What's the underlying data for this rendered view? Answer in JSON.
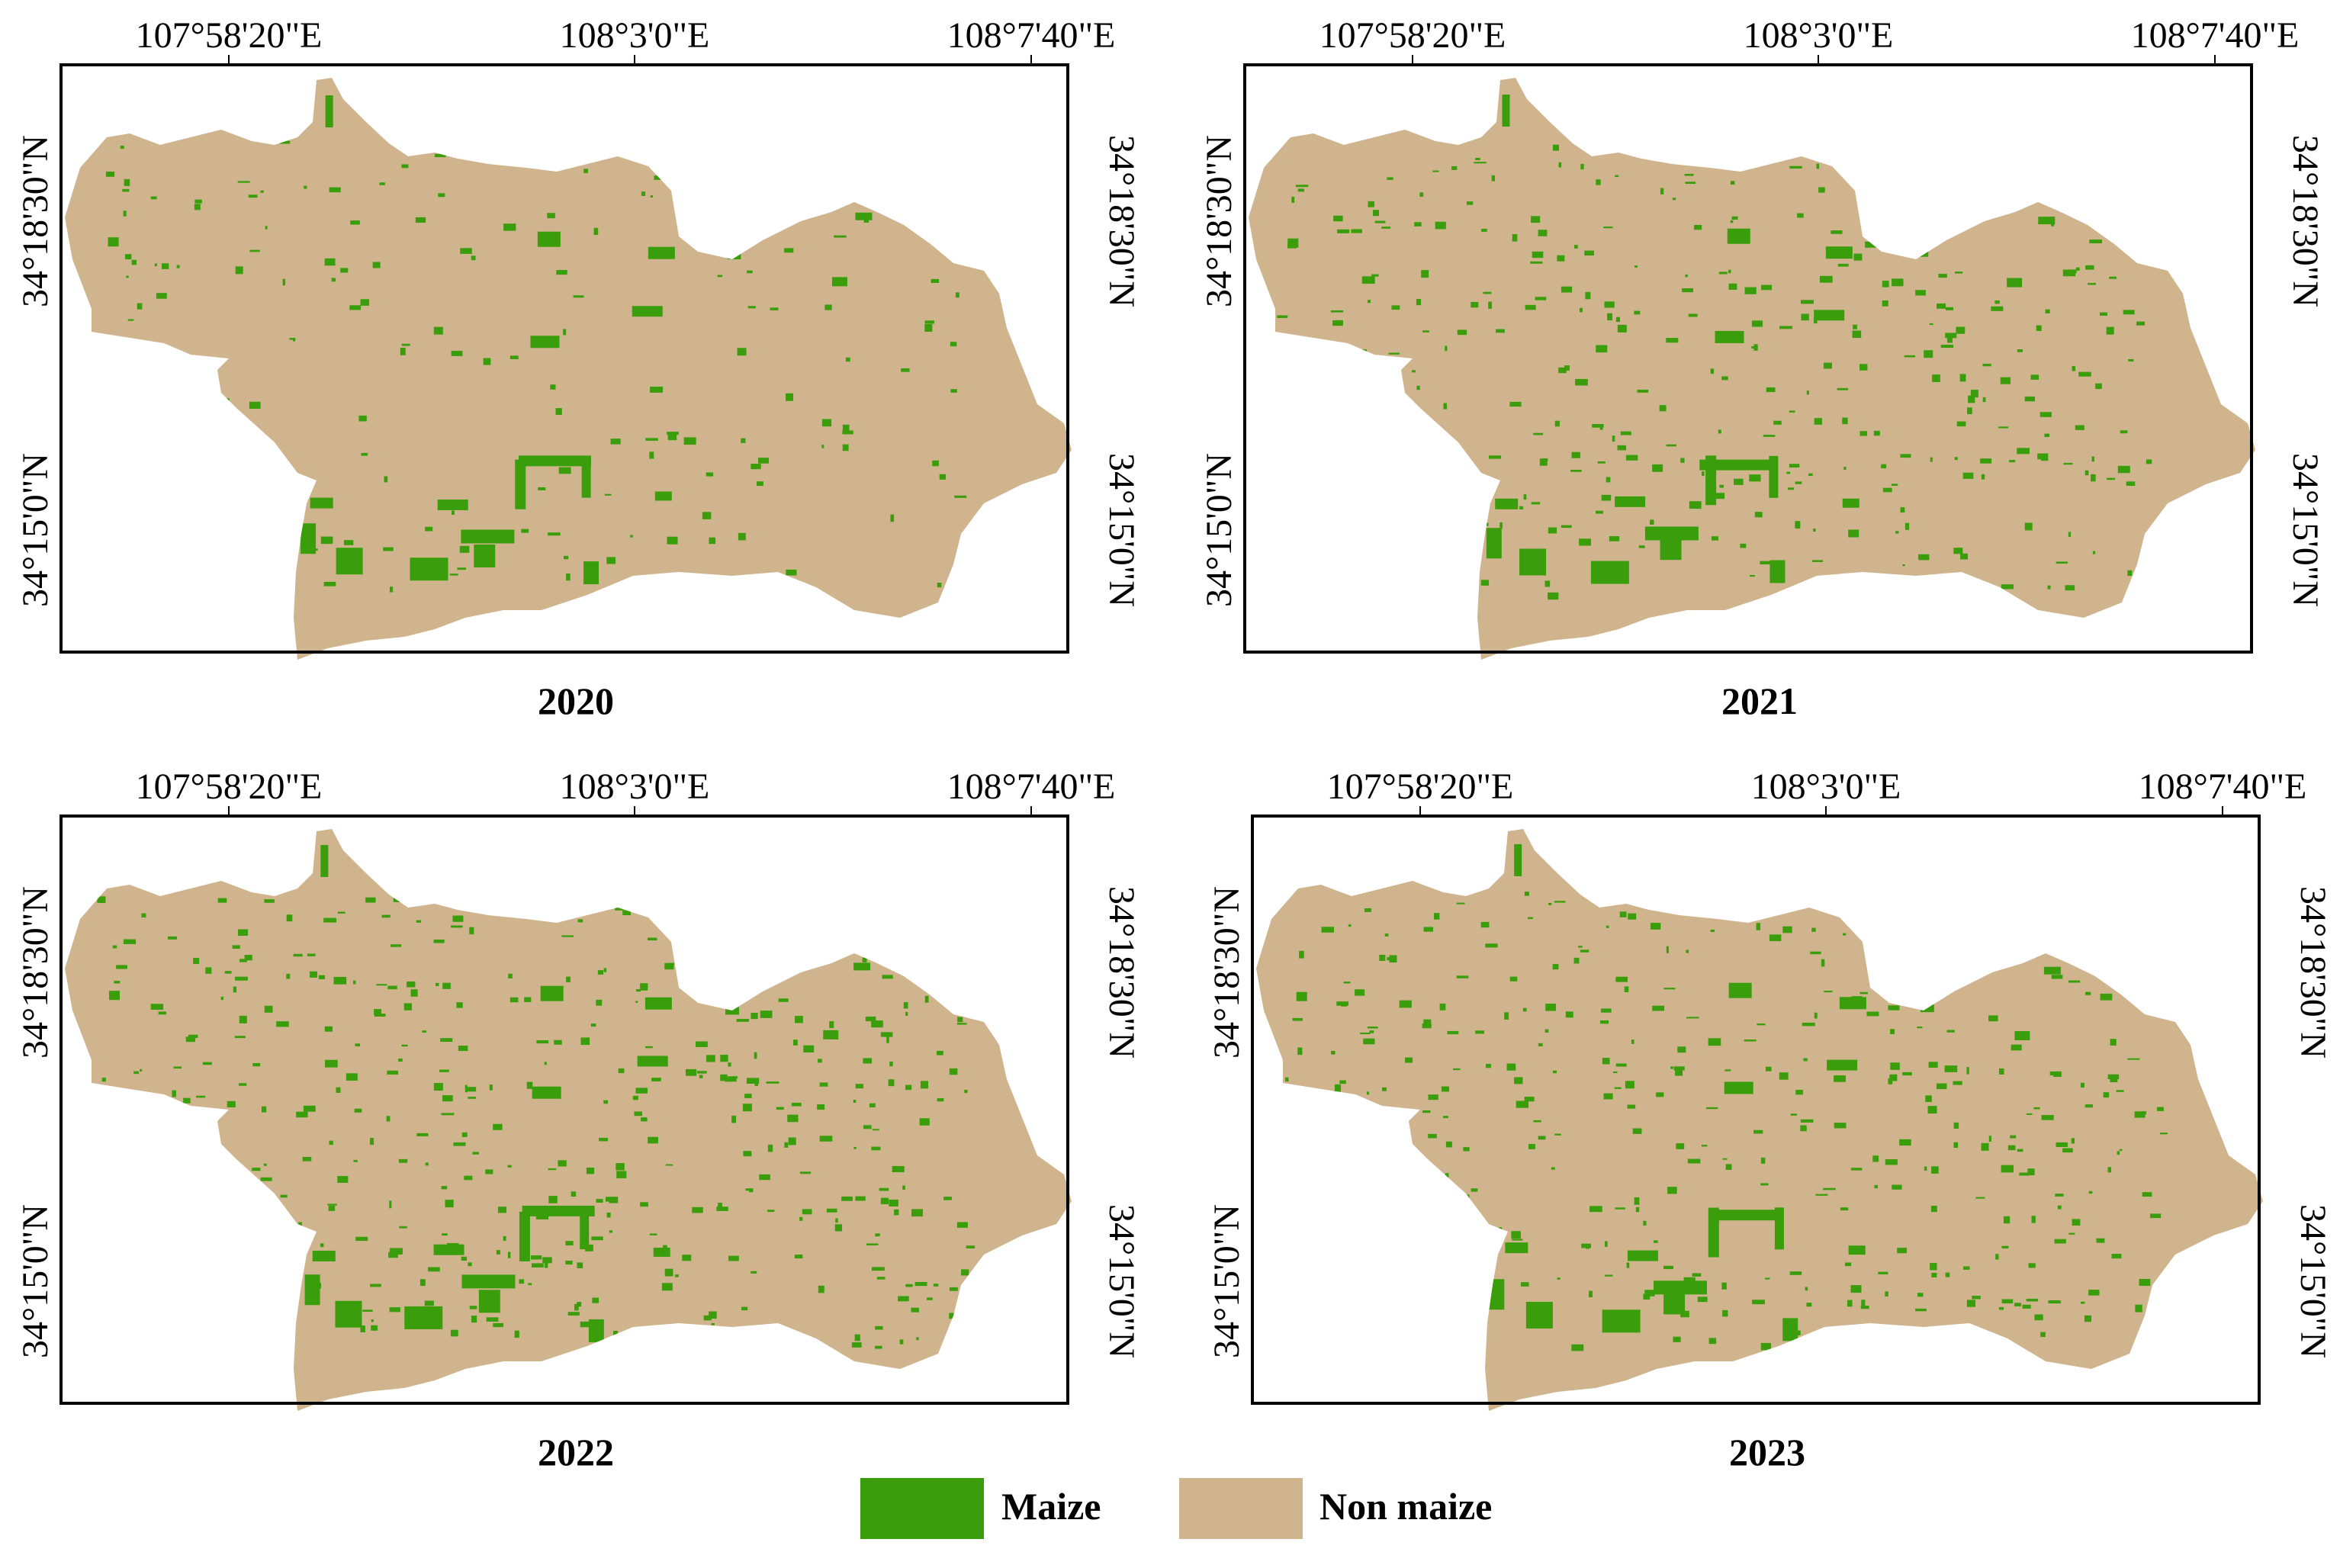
{
  "colors": {
    "maize": "#3a9e0c",
    "non_maize": "#cfb48d",
    "frame": "#000000"
  },
  "panels": [
    {
      "year": "2020",
      "lon_labels": [
        "107°58'20\"E",
        "108°3'0\"E",
        "108°7'40\"E"
      ],
      "lat_labels_left": [
        "34°18'30\"N",
        "34°15'0\"N"
      ],
      "lat_labels_right": [
        "34°18'30\"N",
        "34°15'0\"N"
      ]
    },
    {
      "year": "2021",
      "lon_labels": [
        "107°58'20\"E",
        "108°3'0\"E",
        "108°7'40\"E"
      ],
      "lat_labels_left": [
        "34°18'30\"N",
        "34°15'0\"N"
      ],
      "lat_labels_right": [
        "34°18'30\"N",
        "34°15'0\"N"
      ]
    },
    {
      "year": "2022",
      "lon_labels": [
        "107°58'20\"E",
        "108°3'0\"E",
        "108°7'40\"E"
      ],
      "lat_labels_left": [
        "34°18'30\"N",
        "34°15'0\"N"
      ],
      "lat_labels_right": [
        "34°18'30\"N",
        "34°15'0\"N"
      ]
    },
    {
      "year": "2023",
      "lon_labels": [
        "107°58'20\"E",
        "108°3'0\"E",
        "108°7'40\"E"
      ],
      "lat_labels_left": [
        "34°18'30\"N",
        "34°15'0\"N"
      ],
      "lat_labels_right": [
        "34°18'30\"N",
        "34°15'0\"N"
      ]
    }
  ],
  "legend": {
    "maize_label": "Maize",
    "non_maize_label": "Non maize"
  }
}
